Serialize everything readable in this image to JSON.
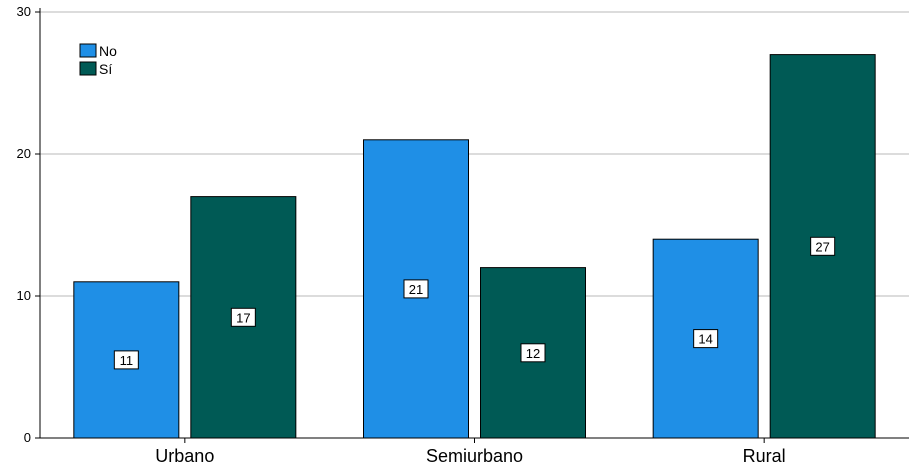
{
  "chart_data": {
    "type": "bar",
    "categories": [
      "Urbano",
      "Semiurbano",
      "Rural"
    ],
    "series": [
      {
        "name": "No",
        "values": [
          11,
          21,
          14
        ],
        "color": "#1f8fe6"
      },
      {
        "name": "Sí",
        "values": [
          17,
          12,
          27
        ],
        "color": "#005a55"
      }
    ],
    "title": "",
    "xlabel": "",
    "ylabel": "",
    "ylim": [
      0,
      30
    ],
    "yticks": [
      0,
      10,
      20,
      30
    ],
    "grid": true,
    "legend_position": "top-left",
    "data_labels": true
  }
}
